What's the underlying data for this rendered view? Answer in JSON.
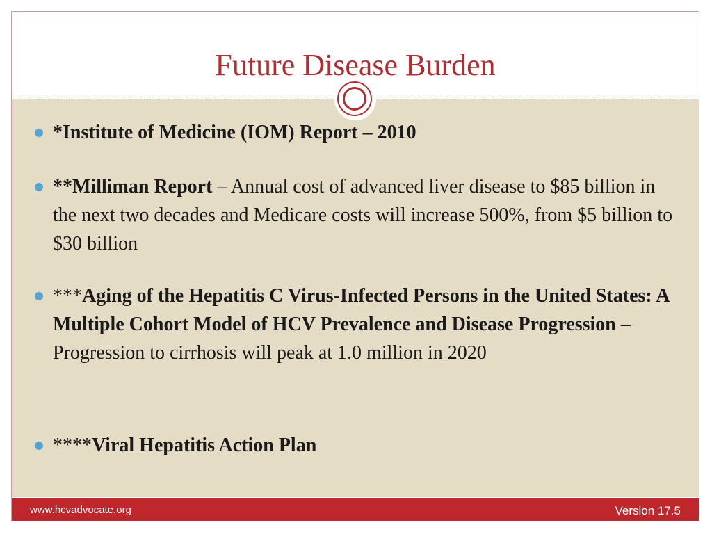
{
  "slide": {
    "title": "Future Disease Burden"
  },
  "bullets": [
    {
      "bold": "*Institute of Medicine (IOM) Report – 2010"
    },
    {
      "bold": "**Milliman Report",
      "rest": " – Annual cost of advanced liver disease to $85 billion in the next two decades and Medicare costs will increase 500%, from $5 billion to $30 billion"
    },
    {
      "prefix": "***",
      "bold": "Aging of the Hepatitis C Virus-Infected Persons in the United States: A Multiple Cohort Model of HCV Prevalence and Disease Progression",
      "rest": " – Progression to cirrhosis will peak at 1.0 million in 2020"
    },
    {
      "prefix": "****",
      "bold": "Viral Hepatitis Action Plan"
    }
  ],
  "footer": {
    "url": "www.hcvadvocate.org",
    "version": "Version 17.5"
  },
  "colors": {
    "accent": "#b32c31",
    "content_bg": "#e5dcc6",
    "bullet": "#58a5d4",
    "footer_bg": "#c0272d"
  }
}
